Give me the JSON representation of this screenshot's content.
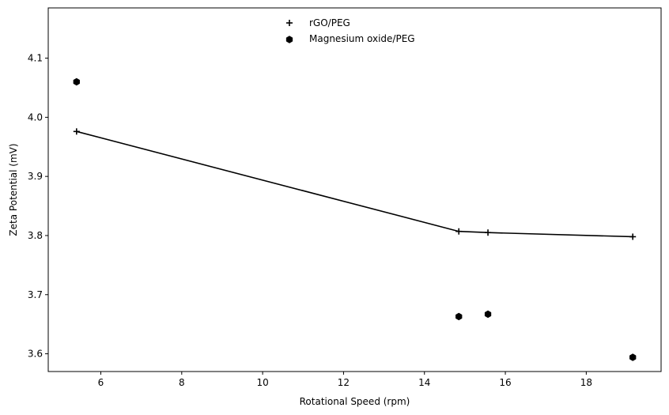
{
  "chart_data": {
    "type": "scatter",
    "xlabel": "Rotational Speed (rpm)",
    "ylabel": "Zeta Potential (mV)",
    "xlim": [
      4.7,
      19.85
    ],
    "ylim": [
      3.57,
      4.185
    ],
    "xticks": [
      6,
      8,
      10,
      12,
      14,
      16,
      18
    ],
    "yticks": [
      3.6,
      3.7,
      3.8,
      3.9,
      4.0,
      4.1
    ],
    "xtick_labels": [
      "6",
      "8",
      "10",
      "12",
      "14",
      "16",
      "18"
    ],
    "ytick_labels": [
      "3.6",
      "3.7",
      "3.8",
      "3.9",
      "4.0",
      "4.1"
    ],
    "grid": false,
    "legend_position": "top-center",
    "series": [
      {
        "name": "rGO/PEG",
        "marker": "plus",
        "connected": true,
        "color": "#000000",
        "x": [
          5.4,
          14.85,
          15.57,
          19.15
        ],
        "y": [
          3.976,
          3.807,
          3.805,
          3.798
        ]
      },
      {
        "name": "Magnesium oxide/PEG",
        "marker": "hexagon",
        "connected": false,
        "color": "#000000",
        "x": [
          5.4,
          14.85,
          15.57,
          19.15
        ],
        "y": [
          4.06,
          3.663,
          3.667,
          3.594
        ]
      }
    ]
  }
}
